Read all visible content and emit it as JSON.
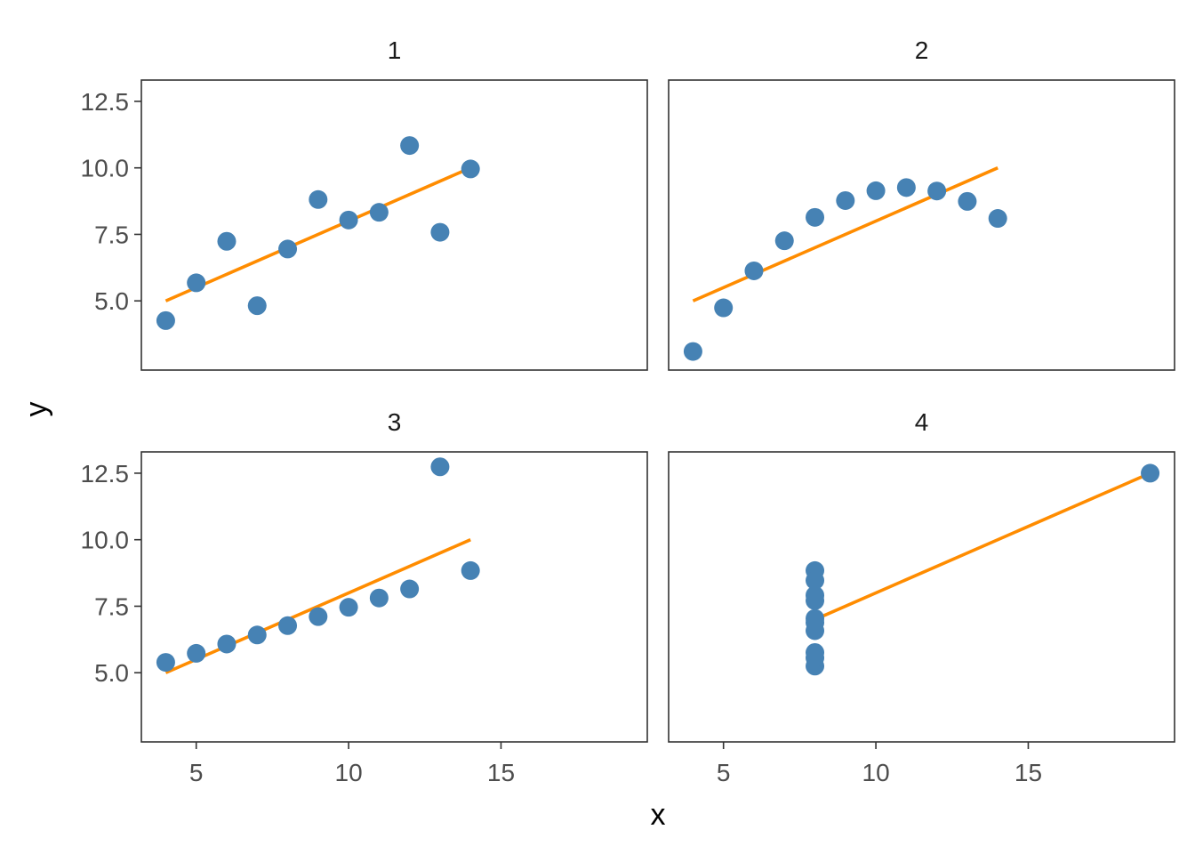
{
  "chart_data": {
    "type": "scatter",
    "xlabel": "x",
    "ylabel": "y",
    "xlim": [
      3.2,
      19.8
    ],
    "ylim": [
      2.4,
      13.3
    ],
    "x_ticks": [
      5,
      10,
      15
    ],
    "x_tick_labels": [
      "5",
      "10",
      "15"
    ],
    "y_ticks": [
      5.0,
      7.5,
      10.0,
      12.5
    ],
    "y_tick_labels": [
      "5.0",
      "7.5",
      "10.0",
      "12.5"
    ],
    "grid": false,
    "point_color": "#4682B4",
    "line_color": "#FF8C00",
    "panels": [
      {
        "label": "1",
        "points": [
          [
            4,
            4.26
          ],
          [
            5,
            5.68
          ],
          [
            6,
            7.24
          ],
          [
            7,
            4.82
          ],
          [
            8,
            6.95
          ],
          [
            9,
            8.81
          ],
          [
            10,
            8.04
          ],
          [
            11,
            8.33
          ],
          [
            12,
            10.84
          ],
          [
            13,
            7.58
          ],
          [
            14,
            9.96
          ]
        ],
        "fit": [
          [
            4,
            5.0
          ],
          [
            14,
            10.0
          ]
        ]
      },
      {
        "label": "2",
        "points": [
          [
            4,
            3.1
          ],
          [
            5,
            4.74
          ],
          [
            6,
            6.13
          ],
          [
            7,
            7.26
          ],
          [
            8,
            8.14
          ],
          [
            9,
            8.77
          ],
          [
            10,
            9.14
          ],
          [
            11,
            9.26
          ],
          [
            12,
            9.13
          ],
          [
            13,
            8.74
          ],
          [
            14,
            8.1
          ]
        ],
        "fit": [
          [
            4,
            5.0
          ],
          [
            14,
            10.0
          ]
        ]
      },
      {
        "label": "3",
        "points": [
          [
            4,
            5.39
          ],
          [
            5,
            5.73
          ],
          [
            6,
            6.08
          ],
          [
            7,
            6.42
          ],
          [
            8,
            6.77
          ],
          [
            9,
            7.11
          ],
          [
            10,
            7.46
          ],
          [
            11,
            7.81
          ],
          [
            12,
            8.15
          ],
          [
            13,
            12.74
          ],
          [
            14,
            8.84
          ]
        ],
        "fit": [
          [
            4,
            5.0
          ],
          [
            14,
            10.0
          ]
        ]
      },
      {
        "label": "4",
        "points": [
          [
            8,
            6.58
          ],
          [
            8,
            5.76
          ],
          [
            8,
            7.71
          ],
          [
            8,
            8.84
          ],
          [
            8,
            8.47
          ],
          [
            8,
            7.04
          ],
          [
            8,
            5.25
          ],
          [
            19,
            12.5
          ],
          [
            8,
            5.56
          ],
          [
            8,
            7.91
          ],
          [
            8,
            6.89
          ]
        ],
        "fit": [
          [
            8,
            7.0
          ],
          [
            19,
            12.5
          ]
        ]
      }
    ]
  }
}
